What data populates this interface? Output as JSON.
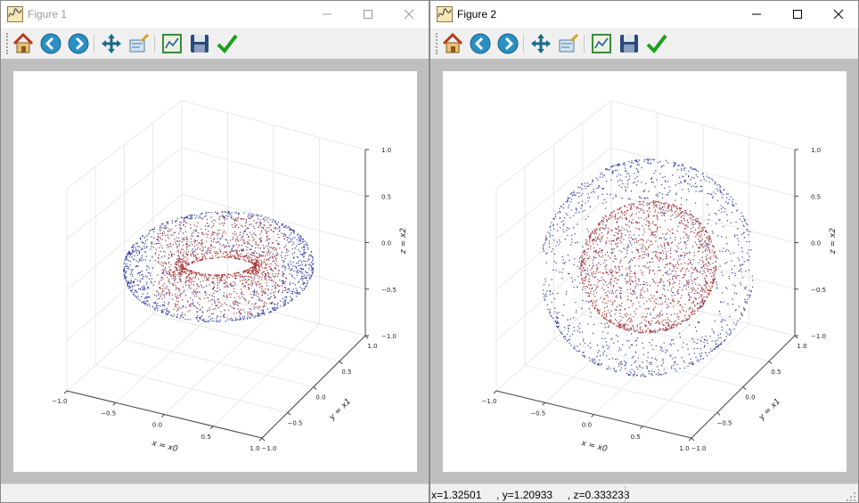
{
  "windows": [
    {
      "title": "Figure 1",
      "status": "",
      "axes": {
        "x_label": "x = x0",
        "y_label": "y = x1",
        "z_label": "z = x2",
        "x_ticks": [
          "−1.0",
          "−0.5",
          "0.0",
          "0.5",
          "1.0"
        ],
        "y_ticks": [
          "−1.0",
          "−0.5",
          "0.0",
          "0.5",
          "1.0"
        ],
        "z_ticks": [
          "−1.0",
          "−0.5",
          "0.0",
          "0.5",
          "1.0"
        ]
      }
    },
    {
      "title": "Figure 2",
      "status": "x=1.32501     , y=1.20933     , z=0.333233",
      "axes": {
        "x_label": "x = x0",
        "y_label": "y = x1",
        "z_label": "z = x2",
        "x_ticks": [
          "−1.0",
          "−0.5",
          "0.0",
          "0.5",
          "1.0"
        ],
        "y_ticks": [
          "−1.0",
          "−0.5",
          "0.0",
          "0.5",
          "1.0"
        ],
        "z_ticks": [
          "−1.0",
          "−0.5",
          "0.0",
          "0.5",
          "1.0"
        ]
      }
    }
  ],
  "toolbar": [
    "home-icon",
    "back-icon",
    "forward-icon",
    "pan-icon",
    "zoom-icon",
    "subplots-icon",
    "save-icon",
    "edit-axes-icon"
  ],
  "colors": {
    "inner_points": "#a83232",
    "outer_points": "#2e3aa0",
    "title_inactive": "#9a9a9a"
  }
}
